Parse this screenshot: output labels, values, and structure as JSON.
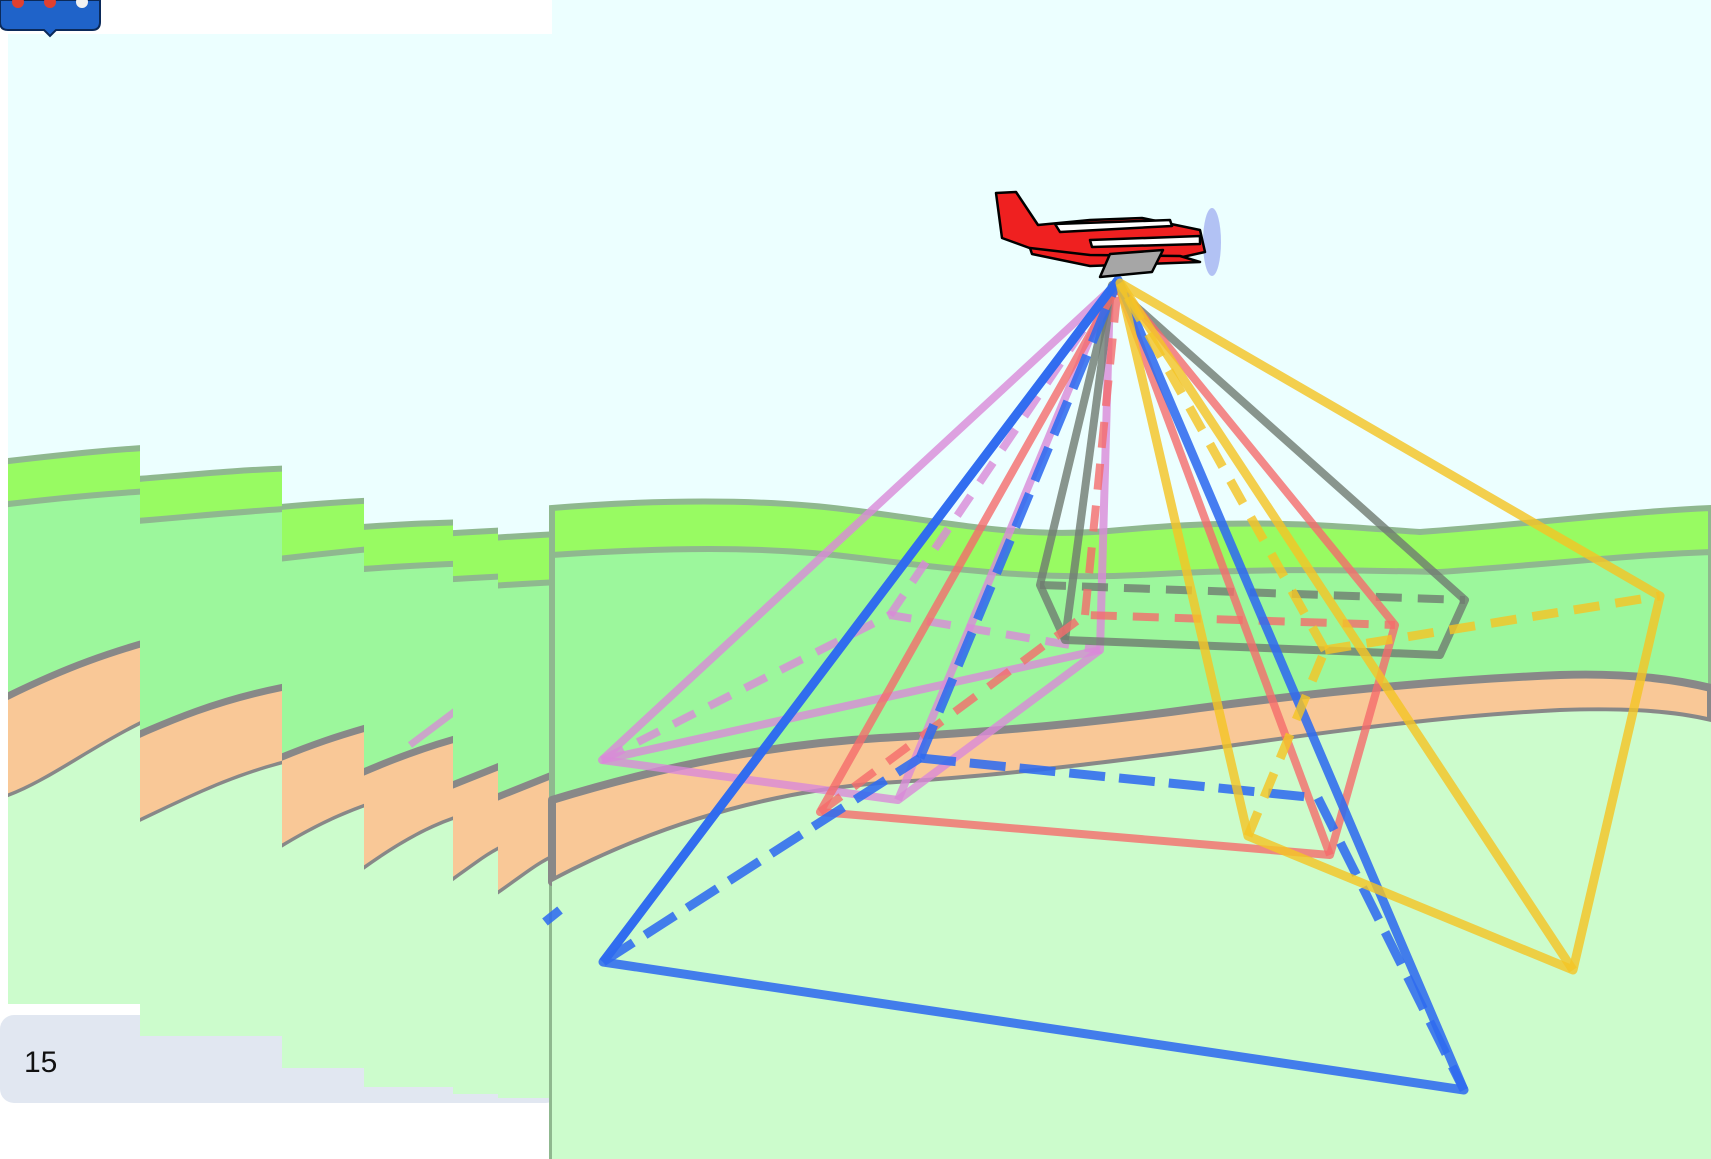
{
  "footer": {
    "page_number": "15"
  },
  "icons": {
    "logo": "app-logo-icon",
    "airplane": "airplane-icon"
  },
  "colors": {
    "sky": "#ecffff",
    "hill_band": "#98fb62",
    "meadow": "#9cf79c",
    "road": "#f9c897",
    "lowland": "#ccfccc",
    "frustum_blue": "#2f6bef",
    "frustum_red": "#f56c6c",
    "frustum_yellow": "#f4c526",
    "frustum_gray": "#6f7a70",
    "frustum_purple": "#d98ad8",
    "plane_body": "#ef2020",
    "footer_bg": "#e1e7f1"
  }
}
